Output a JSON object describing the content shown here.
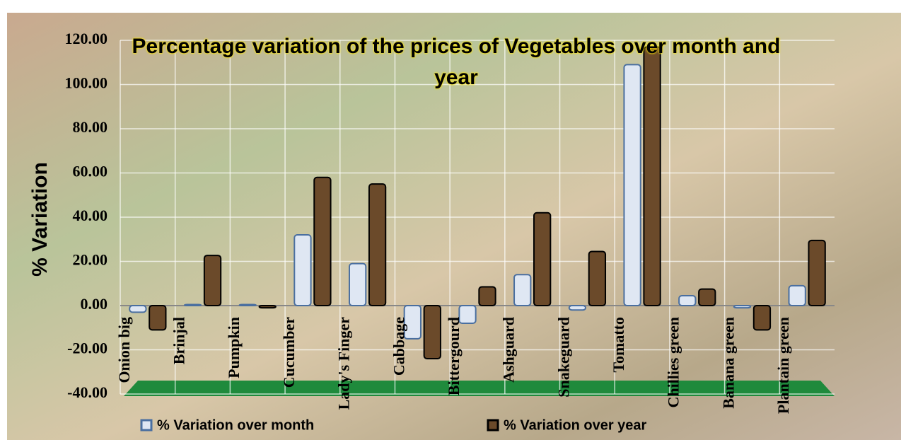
{
  "chart_data": {
    "type": "bar",
    "title": "Percentage variation of the prices of Vegetables over month and year",
    "y_label": "% Variation",
    "categories": [
      "Onion big",
      "Brinjal",
      "Pumpkin",
      "Cucumber",
      "Lady's Finger",
      "Cabbage",
      "Bittergourd",
      "Ashguard",
      "Snakeguard",
      "Tomatto",
      "Chillies green",
      "Banana green",
      "Plantain green"
    ],
    "series": [
      {
        "name": "% Variation over month",
        "color": "#dfe7f3",
        "values": [
          -3,
          0.5,
          0.5,
          32,
          19,
          -15,
          -8,
          14,
          -2,
          109,
          4.5,
          -1,
          9
        ]
      },
      {
        "name": "% Variation over year",
        "color": "#6b4a2a",
        "values": [
          -11,
          22.7,
          -1,
          58,
          55,
          -24,
          8.5,
          42,
          24.5,
          117,
          7.5,
          -11,
          29.5
        ]
      }
    ],
    "ylim": [
      -40,
      120
    ],
    "yticks": [
      {
        "value": -40,
        "label": "-40.00"
      },
      {
        "value": -20,
        "label": "-20.00"
      },
      {
        "value": 0,
        "label": "0.00"
      },
      {
        "value": 20,
        "label": "20.00"
      },
      {
        "value": 40,
        "label": "40.00"
      },
      {
        "value": 60,
        "label": "60.00"
      },
      {
        "value": 80,
        "label": "80.00"
      },
      {
        "value": 100,
        "label": "100.00"
      },
      {
        "value": 120,
        "label": "120.00"
      }
    ],
    "grid": true,
    "legend": "bottom"
  }
}
